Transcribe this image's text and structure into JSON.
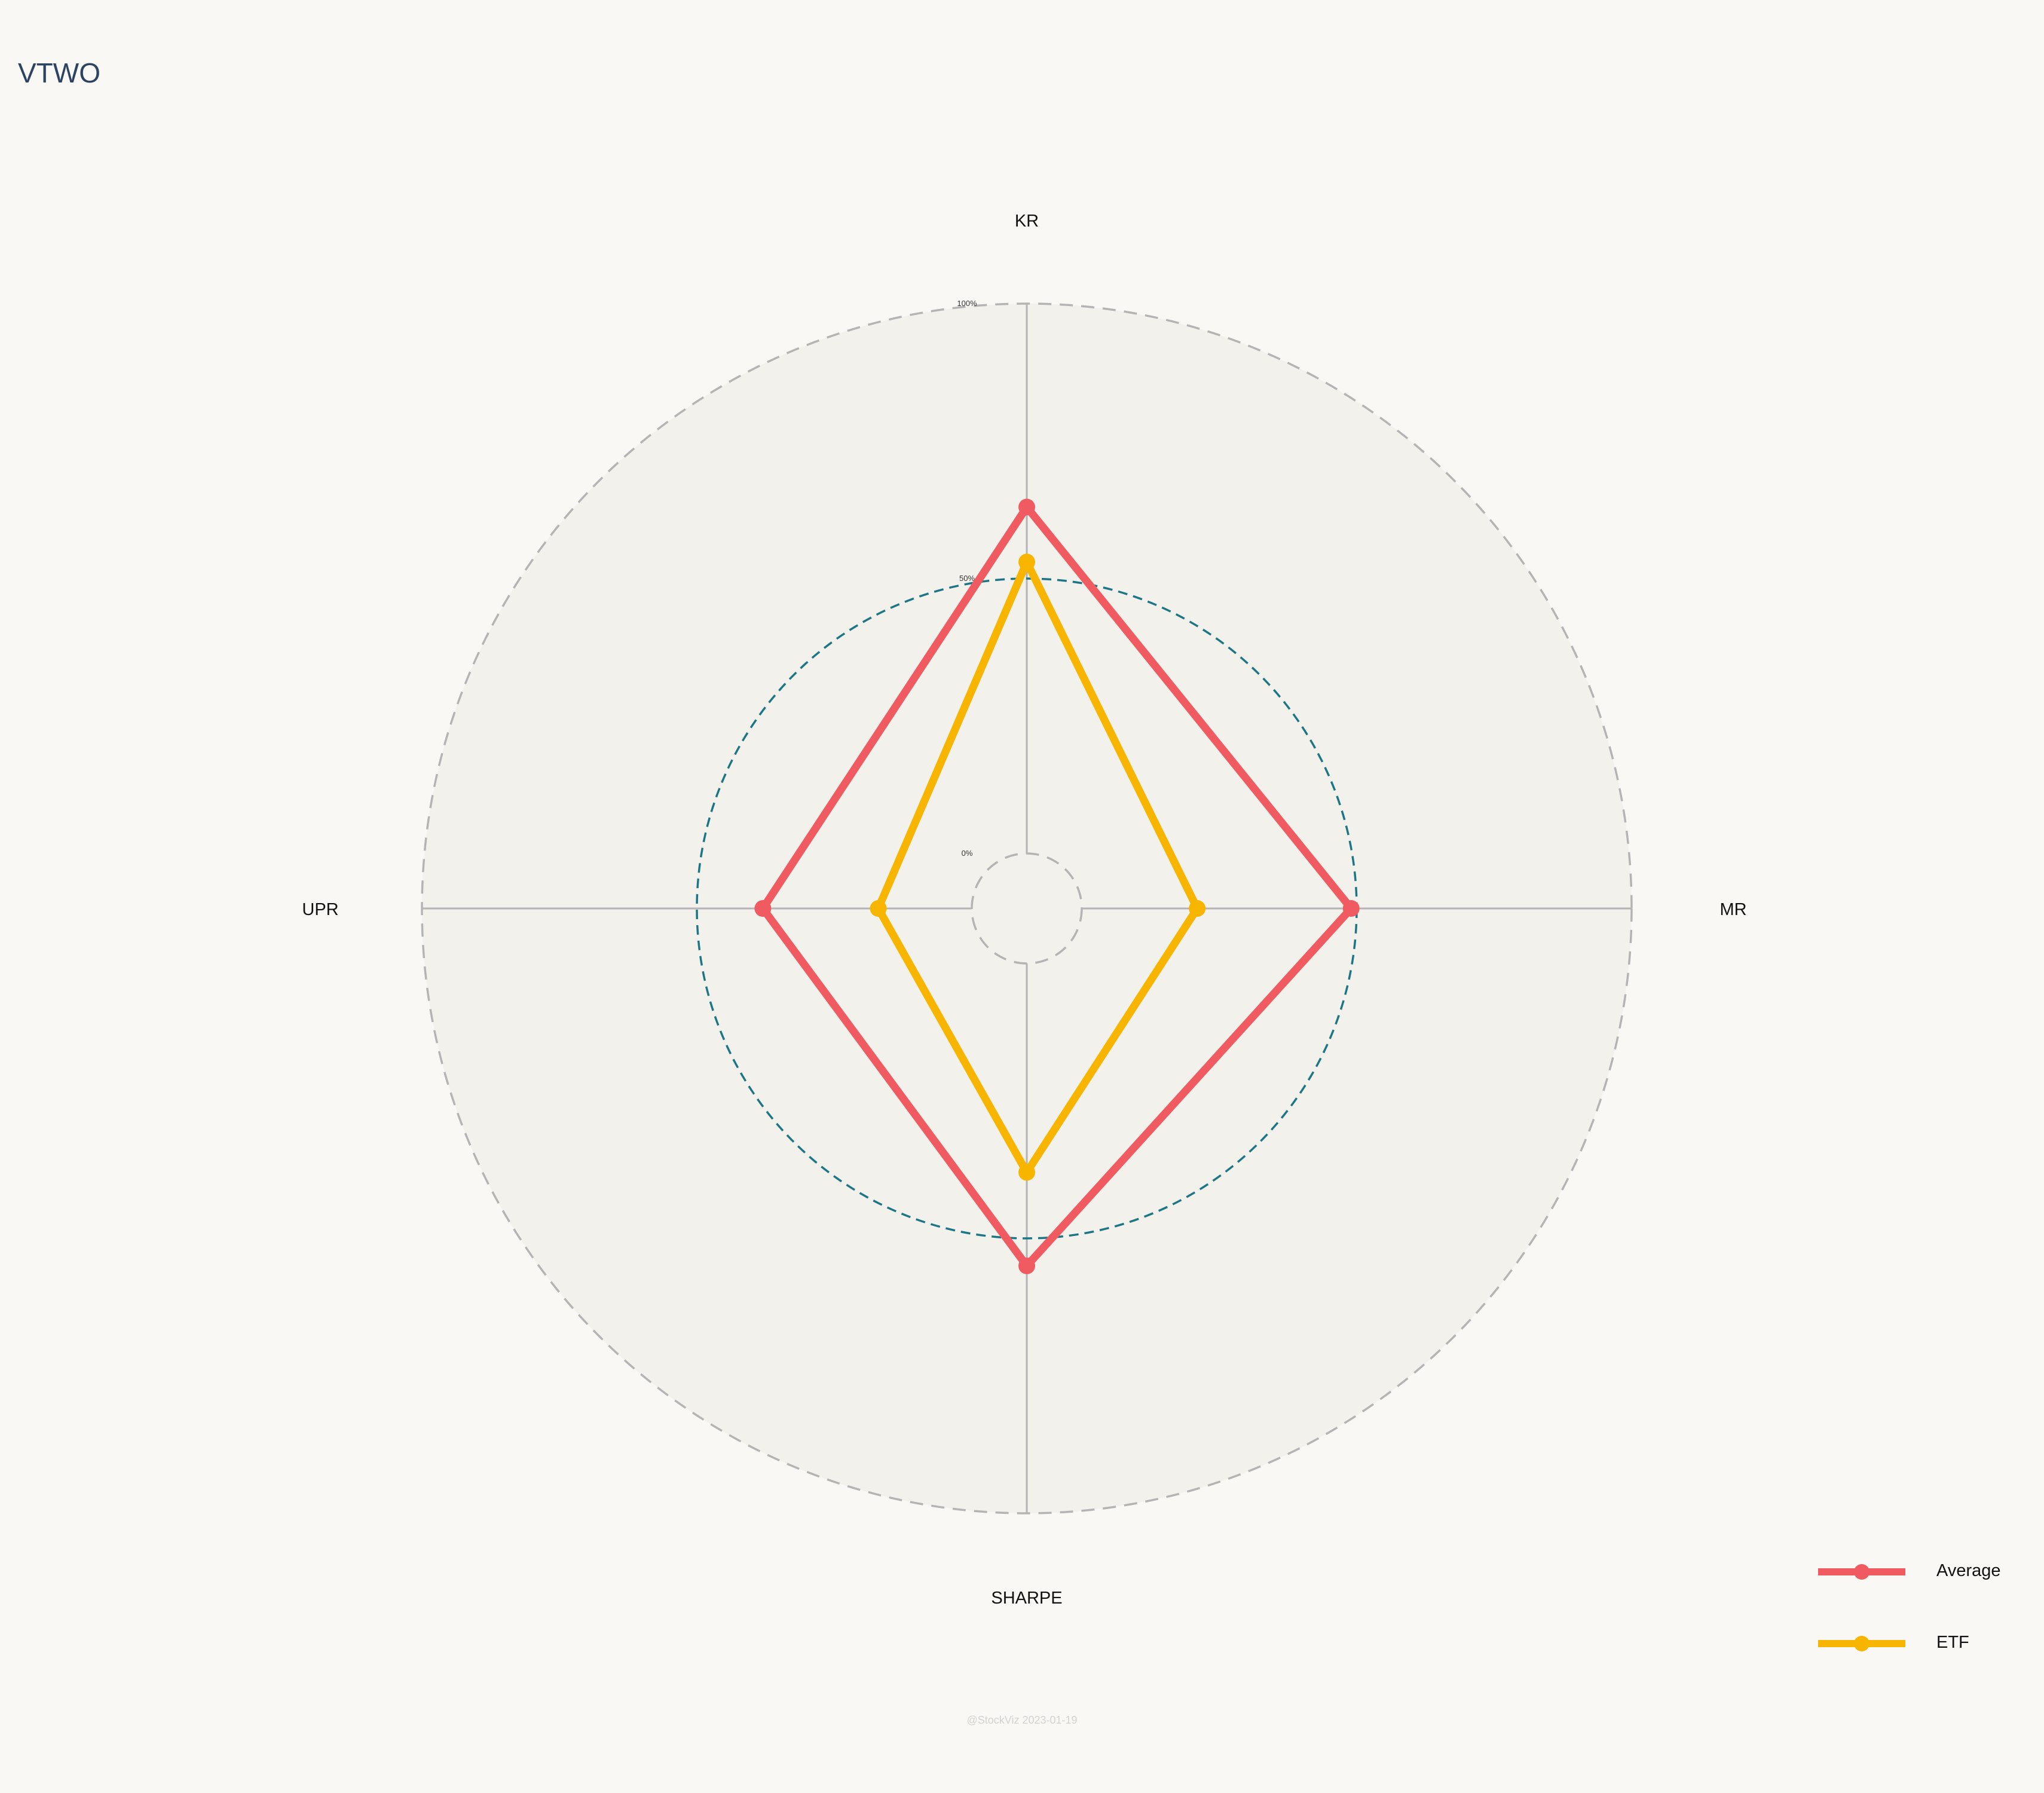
{
  "title": "VTWO",
  "watermark": "@StockViz 2023-01-19",
  "colors": {
    "background": "#f9f8f4",
    "plot_background": "#f2f1ec",
    "grid": "#b4b4b4",
    "mid_ring": "#1d7685",
    "average": "#f05a61",
    "etf": "#f7b500",
    "title": "#2c4462"
  },
  "chart_data": {
    "type": "radar",
    "title": "VTWO",
    "axes": [
      "KR",
      "MR",
      "SHARPE",
      "UPR"
    ],
    "radial_ticks": [
      {
        "value": 0,
        "label": "0%"
      },
      {
        "value": 50,
        "label": "50%"
      },
      {
        "value": 100,
        "label": "100%"
      }
    ],
    "rlim": [
      -10,
      100
    ],
    "grid": true,
    "legend_position": "bottom-right",
    "series": [
      {
        "name": "Average",
        "color": "#f05a61",
        "values": [
          63,
          49,
          55,
          38
        ]
      },
      {
        "name": "ETF",
        "color": "#f7b500",
        "values": [
          53,
          21,
          38,
          17
        ]
      }
    ]
  }
}
